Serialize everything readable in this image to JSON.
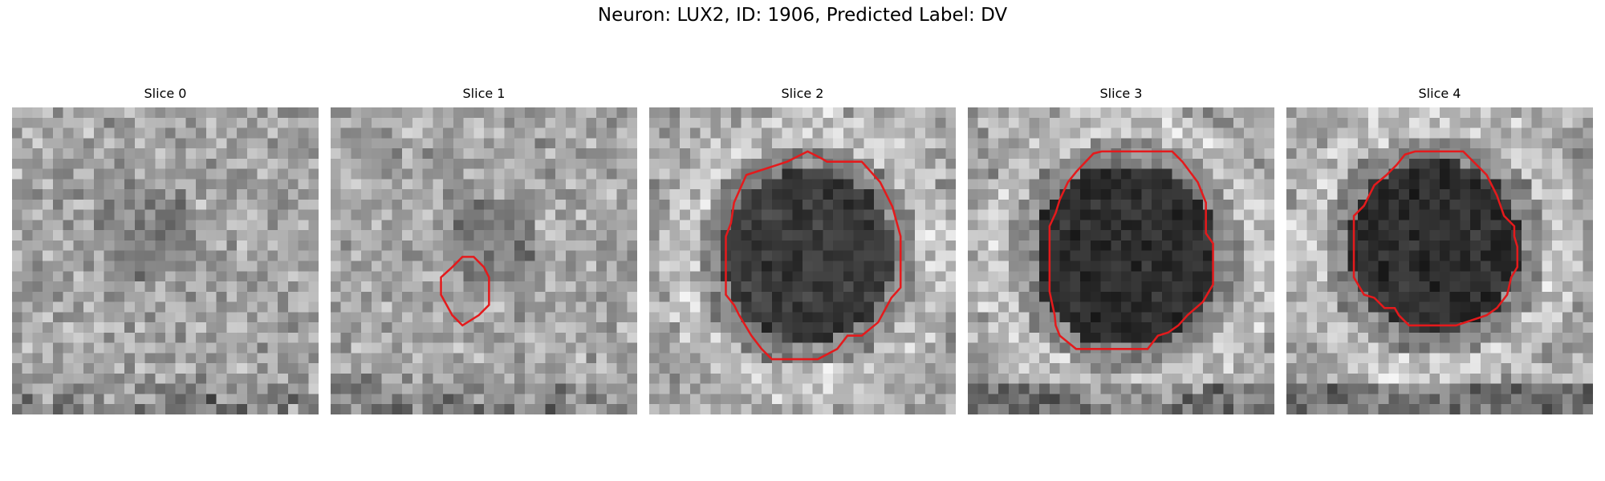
{
  "figure": {
    "title": "Neuron: LUX2, ID: 1906, Predicted Label: DV",
    "contour_color": "#e41a1c"
  },
  "panels": [
    {
      "title": "Slice 0",
      "dark_blob": 0.25,
      "contour": false
    },
    {
      "title": "Slice 1",
      "dark_blob": 0.35,
      "contour": true
    },
    {
      "title": "Slice 2",
      "dark_blob": 0.9,
      "contour": true
    },
    {
      "title": "Slice 3",
      "dark_blob": 1.0,
      "contour": true
    },
    {
      "title": "Slice 4",
      "dark_blob": 1.0,
      "contour": true
    }
  ]
}
